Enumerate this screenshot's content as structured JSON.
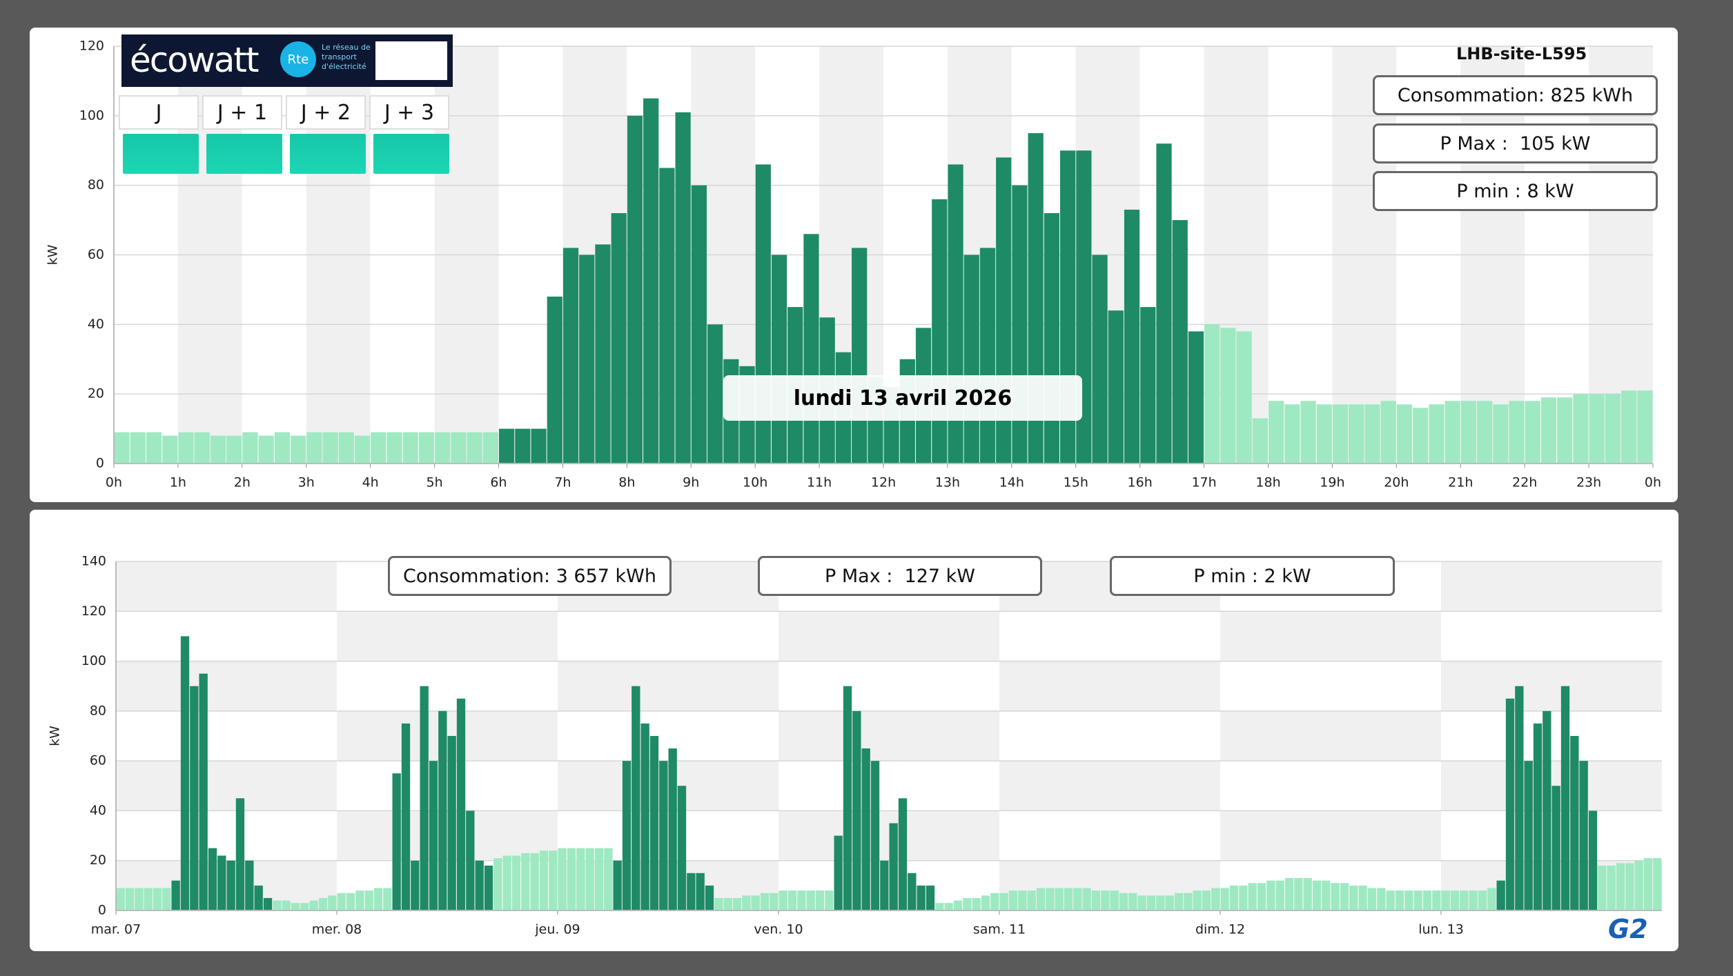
{
  "ecowatt": {
    "logo": "écowatt",
    "rte": "Le réseau de transport d'électricité",
    "days": [
      "J",
      "J + 1",
      "J + 2",
      "J + 3"
    ]
  },
  "brand": "G2",
  "chart_data": [
    {
      "type": "bar",
      "subtitle": "LHB-site-L595",
      "annotation": "lundi 13 avril 2026",
      "y_label": "kW",
      "stats": [
        "Consommation: 825 kWh",
        "P Max :  105 kW",
        "P min : 8 kW"
      ],
      "color": "#9ee9c2",
      "highlight": {
        "color": "#1f8a66",
        "ranges": [
          [
            6,
            17
          ]
        ]
      },
      "x": [
        0,
        0.25,
        0.5,
        0.75,
        1,
        1.25,
        1.5,
        1.75,
        2,
        2.25,
        2.5,
        2.75,
        3,
        3.25,
        3.5,
        3.75,
        4,
        4.25,
        4.5,
        4.75,
        5,
        5.25,
        5.5,
        5.75,
        6,
        6.25,
        6.5,
        6.75,
        7,
        7.25,
        7.5,
        7.75,
        8,
        8.25,
        8.5,
        8.75,
        9,
        9.25,
        9.5,
        9.75,
        10,
        10.25,
        10.5,
        10.75,
        11,
        11.25,
        11.5,
        11.75,
        12,
        12.25,
        12.5,
        12.75,
        13,
        13.25,
        13.5,
        13.75,
        14,
        14.25,
        14.5,
        14.75,
        15,
        15.25,
        15.5,
        15.75,
        16,
        16.25,
        16.5,
        16.75,
        17,
        17.25,
        17.5,
        17.75,
        18,
        18.25,
        18.5,
        18.75,
        19,
        19.25,
        19.5,
        19.75,
        20,
        20.25,
        20.5,
        20.75,
        21,
        21.25,
        21.5,
        21.75,
        22,
        22.25,
        22.5,
        22.75,
        23,
        23.25,
        23.5,
        23.75
      ],
      "values": [
        9,
        9,
        9,
        8,
        9,
        9,
        8,
        8,
        9,
        8,
        9,
        8,
        9,
        9,
        9,
        8,
        9,
        9,
        9,
        9,
        9,
        9,
        9,
        9,
        10,
        10,
        10,
        48,
        62,
        60,
        63,
        72,
        100,
        105,
        85,
        101,
        80,
        40,
        30,
        28,
        86,
        60,
        45,
        66,
        42,
        32,
        62,
        25,
        22,
        30,
        39,
        76,
        86,
        60,
        62,
        88,
        80,
        95,
        72,
        90,
        90,
        60,
        44,
        73,
        45,
        92,
        70,
        38,
        40,
        39,
        38,
        13,
        18,
        17,
        18,
        17,
        17,
        17,
        17,
        18,
        17,
        16,
        17,
        18,
        18,
        18,
        17,
        18,
        18,
        19,
        19,
        20,
        20,
        20,
        21,
        21
      ],
      "xlim": [
        0,
        24
      ],
      "xticks": [
        {
          "value": 0,
          "label": "0h"
        },
        {
          "value": 1,
          "label": "1h"
        },
        {
          "value": 2,
          "label": "2h"
        },
        {
          "value": 3,
          "label": "3h"
        },
        {
          "value": 4,
          "label": "4h"
        },
        {
          "value": 5,
          "label": "5h"
        },
        {
          "value": 6,
          "label": "6h"
        },
        {
          "value": 7,
          "label": "7h"
        },
        {
          "value": 8,
          "label": "8h"
        },
        {
          "value": 9,
          "label": "9h"
        },
        {
          "value": 10,
          "label": "10h"
        },
        {
          "value": 11,
          "label": "11h"
        },
        {
          "value": 12,
          "label": "12h"
        },
        {
          "value": 13,
          "label": "13h"
        },
        {
          "value": 14,
          "label": "14h"
        },
        {
          "value": 15,
          "label": "15h"
        },
        {
          "value": 16,
          "label": "16h"
        },
        {
          "value": 17,
          "label": "17h"
        },
        {
          "value": 18,
          "label": "18h"
        },
        {
          "value": 19,
          "label": "19h"
        },
        {
          "value": 20,
          "label": "20h"
        },
        {
          "value": 21,
          "label": "21h"
        },
        {
          "value": 22,
          "label": "22h"
        },
        {
          "value": 23,
          "label": "23h"
        },
        {
          "value": 24,
          "label": "0h"
        }
      ],
      "ylim": [
        0,
        120
      ],
      "yticks": [
        0,
        20,
        40,
        60,
        80,
        100,
        120
      ],
      "grid": true
    },
    {
      "type": "bar",
      "y_label": "kW",
      "stats": [
        "Consommation: 3 657 kWh",
        "P Max :  127 kW",
        "P min : 2 kW"
      ],
      "color": "#9ee9c2",
      "highlight": {
        "color": "#1f8a66",
        "ranges": [
          [
            6,
            17
          ],
          [
            30,
            41
          ],
          [
            54,
            65
          ],
          [
            78,
            89
          ],
          [
            150,
            161
          ]
        ]
      },
      "x": [
        0,
        1,
        2,
        3,
        4,
        5,
        6,
        7,
        8,
        9,
        10,
        11,
        12,
        13,
        14,
        15,
        16,
        17,
        18,
        19,
        20,
        21,
        22,
        23,
        24,
        25,
        26,
        27,
        28,
        29,
        30,
        31,
        32,
        33,
        34,
        35,
        36,
        37,
        38,
        39,
        40,
        41,
        42,
        43,
        44,
        45,
        46,
        47,
        48,
        49,
        50,
        51,
        52,
        53,
        54,
        55,
        56,
        57,
        58,
        59,
        60,
        61,
        62,
        63,
        64,
        65,
        66,
        67,
        68,
        69,
        70,
        71,
        72,
        73,
        74,
        75,
        76,
        77,
        78,
        79,
        80,
        81,
        82,
        83,
        84,
        85,
        86,
        87,
        88,
        89,
        90,
        91,
        92,
        93,
        94,
        95,
        96,
        97,
        98,
        99,
        100,
        101,
        102,
        103,
        104,
        105,
        106,
        107,
        108,
        109,
        110,
        111,
        112,
        113,
        114,
        115,
        116,
        117,
        118,
        119,
        120,
        121,
        122,
        123,
        124,
        125,
        126,
        127,
        128,
        129,
        130,
        131,
        132,
        133,
        134,
        135,
        136,
        137,
        138,
        139,
        140,
        141,
        142,
        143,
        144,
        145,
        146,
        147,
        148,
        149,
        150,
        151,
        152,
        153,
        154,
        155,
        156,
        157,
        158,
        159,
        160,
        161,
        162,
        163,
        164,
        165,
        166,
        167
      ],
      "values": [
        9,
        9,
        9,
        9,
        9,
        9,
        12,
        110,
        90,
        95,
        25,
        22,
        20,
        45,
        20,
        10,
        5,
        4,
        4,
        3,
        3,
        4,
        5,
        6,
        7,
        7,
        8,
        8,
        9,
        9,
        55,
        75,
        20,
        90,
        60,
        80,
        70,
        85,
        40,
        20,
        18,
        21,
        22,
        22,
        23,
        23,
        24,
        24,
        25,
        25,
        25,
        25,
        25,
        25,
        20,
        60,
        90,
        75,
        70,
        60,
        65,
        50,
        15,
        15,
        10,
        5,
        5,
        5,
        6,
        6,
        7,
        7,
        8,
        8,
        8,
        8,
        8,
        8,
        30,
        90,
        80,
        65,
        60,
        20,
        35,
        45,
        15,
        10,
        10,
        3,
        3,
        4,
        5,
        5,
        6,
        7,
        7,
        8,
        8,
        8,
        9,
        9,
        9,
        9,
        9,
        9,
        8,
        8,
        8,
        7,
        7,
        6,
        6,
        6,
        6,
        7,
        7,
        8,
        8,
        9,
        9,
        10,
        10,
        11,
        11,
        12,
        12,
        13,
        13,
        13,
        12,
        12,
        11,
        11,
        10,
        10,
        9,
        9,
        8,
        8,
        8,
        8,
        8,
        8,
        8,
        8,
        8,
        8,
        8,
        9,
        12,
        85,
        90,
        60,
        75,
        80,
        50,
        90,
        70,
        60,
        40,
        18,
        18,
        19,
        19,
        20,
        21,
        21
      ],
      "xlim": [
        0,
        168
      ],
      "xticks": [
        {
          "value": 0,
          "label": "mar. 07"
        },
        {
          "value": 24,
          "label": "mer. 08"
        },
        {
          "value": 48,
          "label": "jeu. 09"
        },
        {
          "value": 72,
          "label": "ven. 10"
        },
        {
          "value": 96,
          "label": "sam. 11"
        },
        {
          "value": 120,
          "label": "dim. 12"
        },
        {
          "value": 144,
          "label": "lun. 13"
        }
      ],
      "ylim": [
        0,
        140
      ],
      "yticks": [
        0,
        20,
        40,
        60,
        80,
        100,
        120,
        140
      ],
      "grid": true
    }
  ]
}
